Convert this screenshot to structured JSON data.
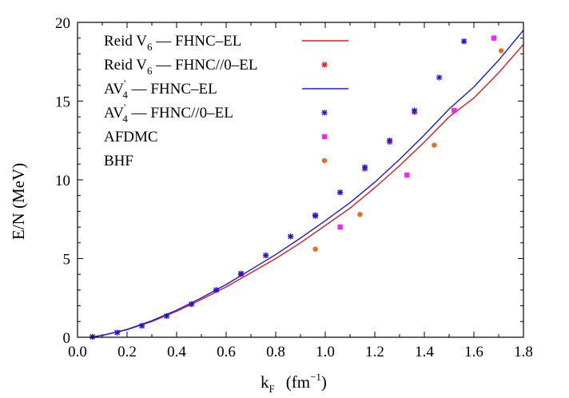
{
  "chart_data": {
    "type": "scatter",
    "xlabel": {
      "main": "k",
      "sub": "F",
      "unit": "(fm",
      "exp": "−1",
      "close": ")"
    },
    "ylabel": "E/N  (MeV)",
    "xlim": [
      0.0,
      1.8
    ],
    "ylim": [
      0,
      20
    ],
    "xticks": [
      "0.0",
      "0.2",
      "0.4",
      "0.6",
      "0.8",
      "1.0",
      "1.2",
      "1.4",
      "1.6",
      "1.8"
    ],
    "yticks": [
      "0",
      "5",
      "10",
      "15",
      "20"
    ],
    "legend_position": "top-left",
    "series": [
      {
        "name": {
          "pre": "Reid V",
          "sub": "6",
          "post": " –– FHNC–EL"
        },
        "kind": "line",
        "color": "#e41a1c",
        "x": [
          0.05,
          0.1,
          0.2,
          0.3,
          0.4,
          0.5,
          0.6,
          0.7,
          0.8,
          0.9,
          1.0,
          1.1,
          1.2,
          1.3,
          1.4,
          1.5,
          1.6,
          1.7,
          1.8
        ],
        "y": [
          0.0,
          0.12,
          0.48,
          1.0,
          1.65,
          2.4,
          3.2,
          4.1,
          5.0,
          6.0,
          7.1,
          8.2,
          9.5,
          10.9,
          12.4,
          14.0,
          15.2,
          16.8,
          18.6
        ]
      },
      {
        "name": {
          "pre": "Reid V",
          "sub": "6",
          "post": " –– FHNC//0–EL"
        },
        "kind": "star",
        "color": "#e41a1c",
        "x": [
          0.06,
          0.16,
          0.26,
          0.36,
          0.46,
          0.56,
          0.66,
          0.76,
          0.86,
          0.96,
          1.06,
          1.16,
          1.26,
          1.36,
          1.56
        ],
        "y": [
          0.03,
          0.3,
          0.73,
          1.35,
          2.1,
          3.0,
          4.0,
          5.2,
          6.4,
          7.7,
          9.2,
          10.7,
          12.4,
          14.3,
          18.8
        ]
      },
      {
        "name": {
          "pre": "AV",
          "sub": "4",
          "sup": "'",
          "post": " –– FHNC–EL"
        },
        "kind": "line",
        "color": "#1a1adb",
        "x": [
          0.05,
          0.1,
          0.2,
          0.3,
          0.4,
          0.5,
          0.6,
          0.7,
          0.8,
          0.9,
          1.0,
          1.1,
          1.2,
          1.3,
          1.4,
          1.5,
          1.6,
          1.7,
          1.8
        ],
        "y": [
          0.0,
          0.12,
          0.5,
          1.05,
          1.72,
          2.5,
          3.35,
          4.3,
          5.25,
          6.3,
          7.4,
          8.55,
          9.85,
          11.3,
          12.85,
          14.5,
          15.9,
          17.6,
          19.5
        ]
      },
      {
        "name": {
          "pre": "AV",
          "sub": "4",
          "sup": "'",
          "post": " –– FHNC//0–EL"
        },
        "kind": "star",
        "color": "#1a1adb",
        "x": [
          0.06,
          0.16,
          0.26,
          0.36,
          0.46,
          0.56,
          0.66,
          0.76,
          0.86,
          0.96,
          1.06,
          1.16,
          1.26,
          1.36,
          1.46,
          1.56
        ],
        "y": [
          0.03,
          0.3,
          0.73,
          1.35,
          2.1,
          3.0,
          4.05,
          5.2,
          6.4,
          7.75,
          9.2,
          10.8,
          12.5,
          14.4,
          16.5,
          18.8
        ]
      },
      {
        "name": {
          "pre": "AFDMC"
        },
        "kind": "square",
        "color": "#ff22ff",
        "x": [
          1.06,
          1.33,
          1.52,
          1.68
        ],
        "y": [
          7.0,
          10.3,
          14.4,
          19.0
        ]
      },
      {
        "name": {
          "pre": "BHF"
        },
        "kind": "circle",
        "color": "#ee6a22",
        "x": [
          0.96,
          1.14,
          1.44,
          1.71
        ],
        "y": [
          5.6,
          7.8,
          12.2,
          18.2
        ]
      }
    ]
  }
}
